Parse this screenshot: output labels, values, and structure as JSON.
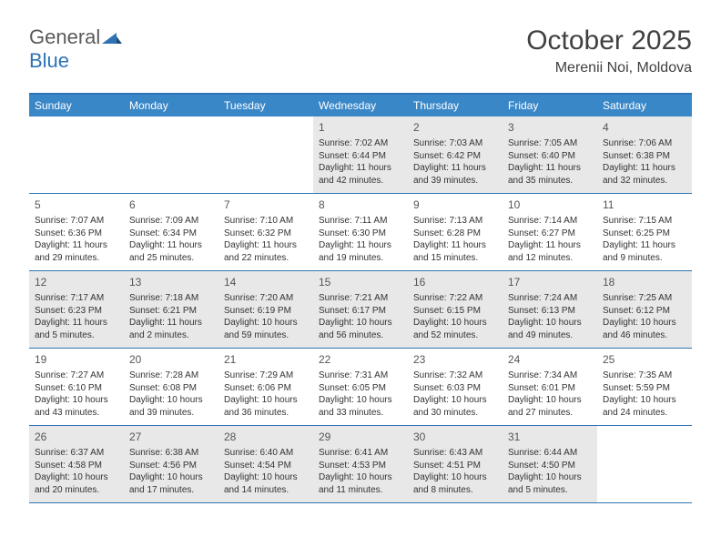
{
  "logo": {
    "word1": "General",
    "word2": "Blue"
  },
  "title": "October 2025",
  "location": "Merenii Noi, Moldova",
  "colors": {
    "accent": "#2e74b5",
    "header_bg": "#3a87c8",
    "header_text": "#ffffff",
    "shaded_bg": "#e8e8e8",
    "text": "#333333",
    "title_text": "#404040"
  },
  "day_names": [
    "Sunday",
    "Monday",
    "Tuesday",
    "Wednesday",
    "Thursday",
    "Friday",
    "Saturday"
  ],
  "weeks": [
    [
      {
        "day": "",
        "lines": []
      },
      {
        "day": "",
        "lines": []
      },
      {
        "day": "",
        "lines": []
      },
      {
        "day": "1",
        "lines": [
          "Sunrise: 7:02 AM",
          "Sunset: 6:44 PM",
          "Daylight: 11 hours and 42 minutes."
        ]
      },
      {
        "day": "2",
        "lines": [
          "Sunrise: 7:03 AM",
          "Sunset: 6:42 PM",
          "Daylight: 11 hours and 39 minutes."
        ]
      },
      {
        "day": "3",
        "lines": [
          "Sunrise: 7:05 AM",
          "Sunset: 6:40 PM",
          "Daylight: 11 hours and 35 minutes."
        ]
      },
      {
        "day": "4",
        "lines": [
          "Sunrise: 7:06 AM",
          "Sunset: 6:38 PM",
          "Daylight: 11 hours and 32 minutes."
        ]
      }
    ],
    [
      {
        "day": "5",
        "lines": [
          "Sunrise: 7:07 AM",
          "Sunset: 6:36 PM",
          "Daylight: 11 hours and 29 minutes."
        ]
      },
      {
        "day": "6",
        "lines": [
          "Sunrise: 7:09 AM",
          "Sunset: 6:34 PM",
          "Daylight: 11 hours and 25 minutes."
        ]
      },
      {
        "day": "7",
        "lines": [
          "Sunrise: 7:10 AM",
          "Sunset: 6:32 PM",
          "Daylight: 11 hours and 22 minutes."
        ]
      },
      {
        "day": "8",
        "lines": [
          "Sunrise: 7:11 AM",
          "Sunset: 6:30 PM",
          "Daylight: 11 hours and 19 minutes."
        ]
      },
      {
        "day": "9",
        "lines": [
          "Sunrise: 7:13 AM",
          "Sunset: 6:28 PM",
          "Daylight: 11 hours and 15 minutes."
        ]
      },
      {
        "day": "10",
        "lines": [
          "Sunrise: 7:14 AM",
          "Sunset: 6:27 PM",
          "Daylight: 11 hours and 12 minutes."
        ]
      },
      {
        "day": "11",
        "lines": [
          "Sunrise: 7:15 AM",
          "Sunset: 6:25 PM",
          "Daylight: 11 hours and 9 minutes."
        ]
      }
    ],
    [
      {
        "day": "12",
        "lines": [
          "Sunrise: 7:17 AM",
          "Sunset: 6:23 PM",
          "Daylight: 11 hours and 5 minutes."
        ]
      },
      {
        "day": "13",
        "lines": [
          "Sunrise: 7:18 AM",
          "Sunset: 6:21 PM",
          "Daylight: 11 hours and 2 minutes."
        ]
      },
      {
        "day": "14",
        "lines": [
          "Sunrise: 7:20 AM",
          "Sunset: 6:19 PM",
          "Daylight: 10 hours and 59 minutes."
        ]
      },
      {
        "day": "15",
        "lines": [
          "Sunrise: 7:21 AM",
          "Sunset: 6:17 PM",
          "Daylight: 10 hours and 56 minutes."
        ]
      },
      {
        "day": "16",
        "lines": [
          "Sunrise: 7:22 AM",
          "Sunset: 6:15 PM",
          "Daylight: 10 hours and 52 minutes."
        ]
      },
      {
        "day": "17",
        "lines": [
          "Sunrise: 7:24 AM",
          "Sunset: 6:13 PM",
          "Daylight: 10 hours and 49 minutes."
        ]
      },
      {
        "day": "18",
        "lines": [
          "Sunrise: 7:25 AM",
          "Sunset: 6:12 PM",
          "Daylight: 10 hours and 46 minutes."
        ]
      }
    ],
    [
      {
        "day": "19",
        "lines": [
          "Sunrise: 7:27 AM",
          "Sunset: 6:10 PM",
          "Daylight: 10 hours and 43 minutes."
        ]
      },
      {
        "day": "20",
        "lines": [
          "Sunrise: 7:28 AM",
          "Sunset: 6:08 PM",
          "Daylight: 10 hours and 39 minutes."
        ]
      },
      {
        "day": "21",
        "lines": [
          "Sunrise: 7:29 AM",
          "Sunset: 6:06 PM",
          "Daylight: 10 hours and 36 minutes."
        ]
      },
      {
        "day": "22",
        "lines": [
          "Sunrise: 7:31 AM",
          "Sunset: 6:05 PM",
          "Daylight: 10 hours and 33 minutes."
        ]
      },
      {
        "day": "23",
        "lines": [
          "Sunrise: 7:32 AM",
          "Sunset: 6:03 PM",
          "Daylight: 10 hours and 30 minutes."
        ]
      },
      {
        "day": "24",
        "lines": [
          "Sunrise: 7:34 AM",
          "Sunset: 6:01 PM",
          "Daylight: 10 hours and 27 minutes."
        ]
      },
      {
        "day": "25",
        "lines": [
          "Sunrise: 7:35 AM",
          "Sunset: 5:59 PM",
          "Daylight: 10 hours and 24 minutes."
        ]
      }
    ],
    [
      {
        "day": "26",
        "lines": [
          "Sunrise: 6:37 AM",
          "Sunset: 4:58 PM",
          "Daylight: 10 hours and 20 minutes."
        ]
      },
      {
        "day": "27",
        "lines": [
          "Sunrise: 6:38 AM",
          "Sunset: 4:56 PM",
          "Daylight: 10 hours and 17 minutes."
        ]
      },
      {
        "day": "28",
        "lines": [
          "Sunrise: 6:40 AM",
          "Sunset: 4:54 PM",
          "Daylight: 10 hours and 14 minutes."
        ]
      },
      {
        "day": "29",
        "lines": [
          "Sunrise: 6:41 AM",
          "Sunset: 4:53 PM",
          "Daylight: 10 hours and 11 minutes."
        ]
      },
      {
        "day": "30",
        "lines": [
          "Sunrise: 6:43 AM",
          "Sunset: 4:51 PM",
          "Daylight: 10 hours and 8 minutes."
        ]
      },
      {
        "day": "31",
        "lines": [
          "Sunrise: 6:44 AM",
          "Sunset: 4:50 PM",
          "Daylight: 10 hours and 5 minutes."
        ]
      },
      {
        "day": "",
        "lines": []
      }
    ]
  ]
}
